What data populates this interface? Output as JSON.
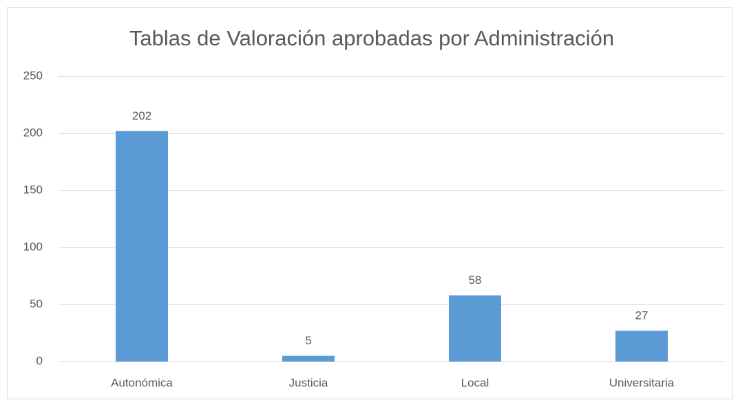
{
  "chart_data": {
    "type": "bar",
    "title": "Tablas de Valoración aprobadas por Administración",
    "categories": [
      "Autonómica",
      "Justicia",
      "Local",
      "Universitaria"
    ],
    "values": [
      202,
      5,
      58,
      27
    ],
    "color": "#5b9bd5",
    "ylim": [
      0,
      250
    ],
    "yticks": [
      0,
      50,
      100,
      150,
      200,
      250
    ],
    "grid": true
  }
}
